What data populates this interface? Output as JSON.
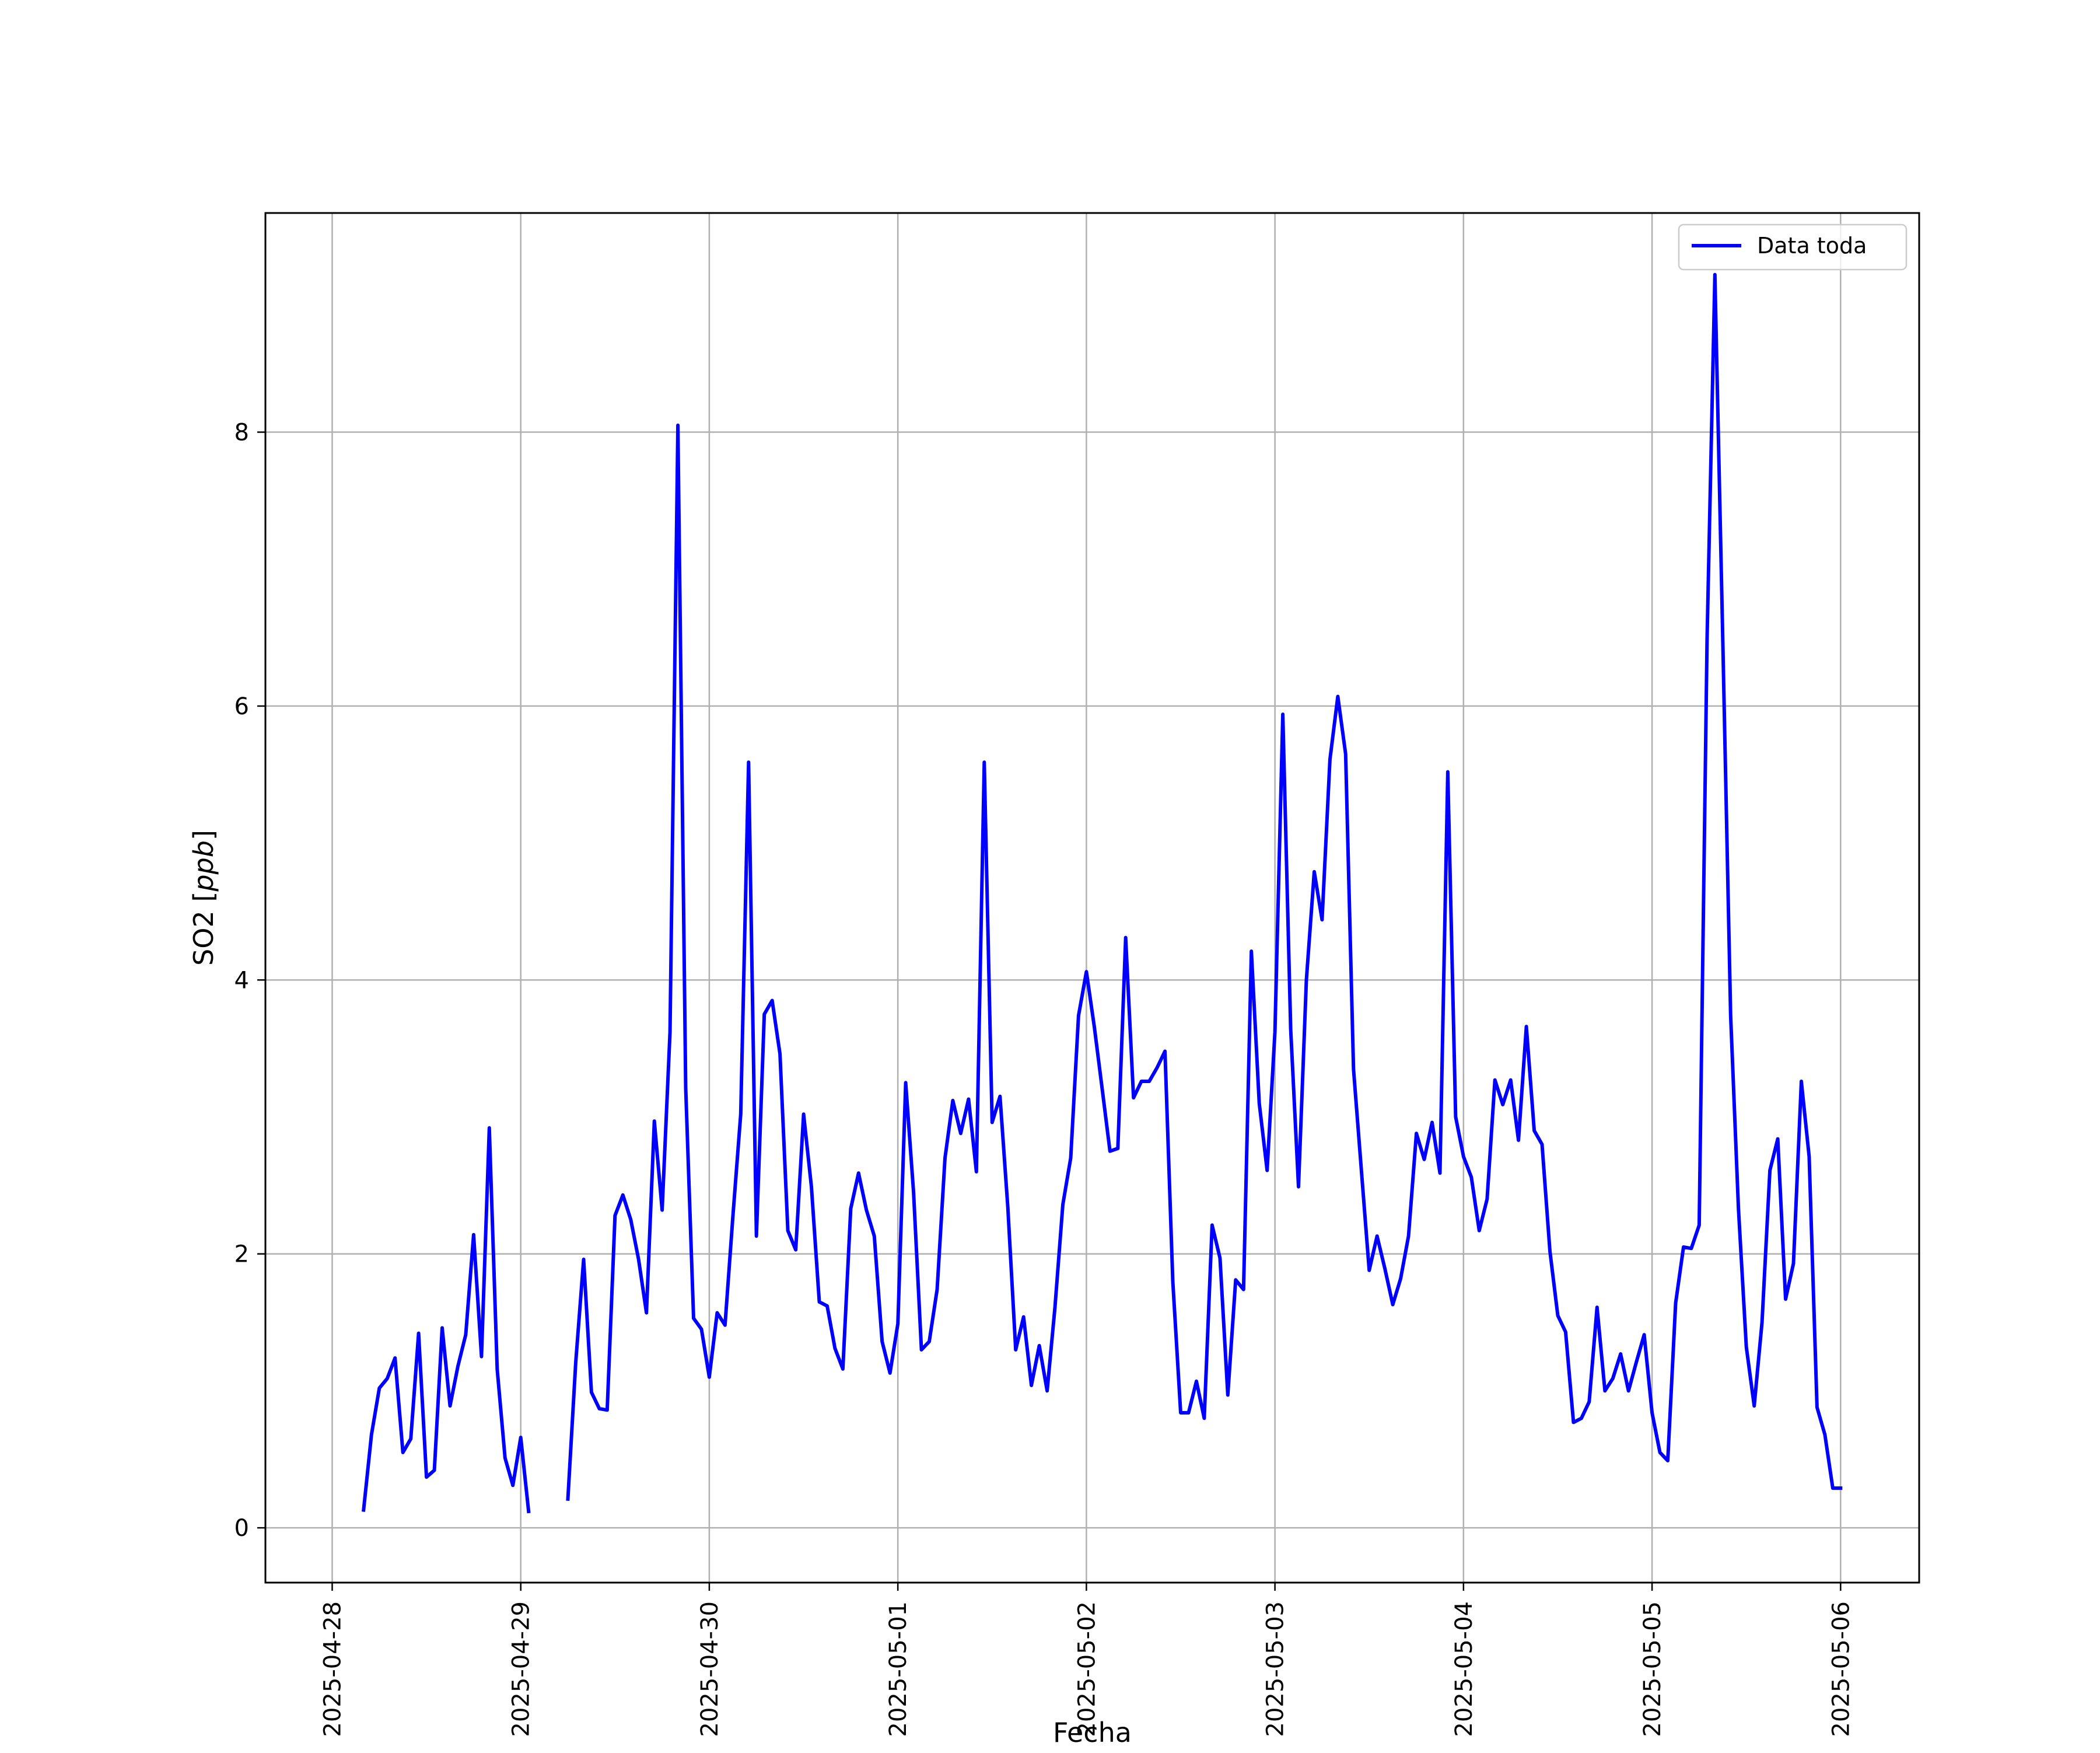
{
  "chart_data": {
    "type": "line",
    "title": "",
    "xlabel": "Fecha",
    "ylabel": "SO2 [ppb]",
    "ylabel_parts": {
      "main": "SO2 [",
      "italic": "ppb",
      "close": "]"
    },
    "ylim": [
      -0.4,
      9.6
    ],
    "y_ticks": [
      0,
      2,
      4,
      6,
      8
    ],
    "y_tick_labels": [
      "0",
      "2",
      "4",
      "6",
      "8"
    ],
    "xlim": [
      "2025-04-27T15:30",
      "2025-05-06T10:00"
    ],
    "x_ticks": [
      "2025-04-28",
      "2025-04-29",
      "2025-04-30",
      "2025-05-01",
      "2025-05-02",
      "2025-05-03",
      "2025-05-04",
      "2025-05-05",
      "2025-05-06"
    ],
    "x_tick_labels": [
      "2025-04-28",
      "2025-04-29",
      "2025-04-30",
      "2025-05-01",
      "2025-05-02",
      "2025-05-03",
      "2025-05-04",
      "2025-05-05",
      "2025-05-06"
    ],
    "grid": true,
    "legend_position": "upper right",
    "series": [
      {
        "name": "Data toda",
        "color": "#0000ff",
        "x": [
          "2025-04-28T04:00",
          "2025-04-28T05:00",
          "2025-04-28T06:00",
          "2025-04-28T07:00",
          "2025-04-28T08:00",
          "2025-04-28T09:00",
          "2025-04-28T10:00",
          "2025-04-28T11:00",
          "2025-04-28T12:00",
          "2025-04-28T13:00",
          "2025-04-28T14:00",
          "2025-04-28T15:00",
          "2025-04-28T16:00",
          "2025-04-28T17:00",
          "2025-04-28T18:00",
          "2025-04-28T19:00",
          "2025-04-28T20:00",
          "2025-04-28T21:00",
          "2025-04-28T22:00",
          "2025-04-28T23:00",
          "2025-04-29T00:00",
          "2025-04-29T01:00",
          "2025-04-29T02:00",
          "2025-04-29T06:00",
          "2025-04-29T07:00",
          "2025-04-29T08:00",
          "2025-04-29T09:00",
          "2025-04-29T10:00",
          "2025-04-29T11:00",
          "2025-04-29T12:00",
          "2025-04-29T13:00",
          "2025-04-29T14:00",
          "2025-04-29T15:00",
          "2025-04-29T16:00",
          "2025-04-29T17:00",
          "2025-04-29T18:00",
          "2025-04-29T19:00",
          "2025-04-29T20:00",
          "2025-04-29T21:00",
          "2025-04-29T22:00",
          "2025-04-29T23:00",
          "2025-04-30T00:00",
          "2025-04-30T01:00",
          "2025-04-30T02:00",
          "2025-04-30T03:00",
          "2025-04-30T04:00",
          "2025-04-30T05:00",
          "2025-04-30T06:00",
          "2025-04-30T07:00",
          "2025-04-30T08:00",
          "2025-04-30T09:00",
          "2025-04-30T10:00",
          "2025-04-30T11:00",
          "2025-04-30T12:00",
          "2025-04-30T13:00",
          "2025-04-30T14:00",
          "2025-04-30T15:00",
          "2025-04-30T16:00",
          "2025-04-30T17:00",
          "2025-04-30T18:00",
          "2025-04-30T19:00",
          "2025-04-30T20:00",
          "2025-04-30T21:00",
          "2025-04-30T22:00",
          "2025-04-30T23:00",
          "2025-05-01T00:00",
          "2025-05-01T01:00",
          "2025-05-01T02:00",
          "2025-05-01T03:00",
          "2025-05-01T04:00",
          "2025-05-01T05:00",
          "2025-05-01T06:00",
          "2025-05-01T07:00",
          "2025-05-01T08:00",
          "2025-05-01T09:00",
          "2025-05-01T10:00",
          "2025-05-01T11:00",
          "2025-05-01T12:00",
          "2025-05-01T13:00",
          "2025-05-01T14:00",
          "2025-05-01T15:00",
          "2025-05-01T16:00",
          "2025-05-01T17:00",
          "2025-05-01T18:00",
          "2025-05-01T19:00",
          "2025-05-01T20:00",
          "2025-05-01T21:00",
          "2025-05-01T22:00",
          "2025-05-01T23:00",
          "2025-05-02T00:00",
          "2025-05-02T01:00",
          "2025-05-02T02:00",
          "2025-05-02T03:00",
          "2025-05-02T04:00",
          "2025-05-02T05:00",
          "2025-05-02T06:00",
          "2025-05-02T07:00",
          "2025-05-02T08:00",
          "2025-05-02T09:00",
          "2025-05-02T10:00",
          "2025-05-02T11:00",
          "2025-05-02T12:00",
          "2025-05-02T13:00",
          "2025-05-02T14:00",
          "2025-05-02T15:00",
          "2025-05-02T16:00",
          "2025-05-02T17:00",
          "2025-05-02T18:00",
          "2025-05-02T19:00",
          "2025-05-02T20:00",
          "2025-05-02T21:00",
          "2025-05-02T22:00",
          "2025-05-02T23:00",
          "2025-05-03T00:00",
          "2025-05-03T01:00",
          "2025-05-03T02:00",
          "2025-05-03T03:00",
          "2025-05-03T04:00",
          "2025-05-03T05:00",
          "2025-05-03T06:00",
          "2025-05-03T07:00",
          "2025-05-03T08:00",
          "2025-05-03T09:00",
          "2025-05-03T10:00",
          "2025-05-03T11:00",
          "2025-05-03T12:00",
          "2025-05-03T13:00",
          "2025-05-03T14:00",
          "2025-05-03T15:00",
          "2025-05-03T16:00",
          "2025-05-03T17:00",
          "2025-05-03T18:00",
          "2025-05-03T19:00",
          "2025-05-03T20:00",
          "2025-05-03T21:00",
          "2025-05-03T22:00",
          "2025-05-03T23:00",
          "2025-05-04T00:00",
          "2025-05-04T01:00",
          "2025-05-04T02:00",
          "2025-05-04T03:00",
          "2025-05-04T04:00",
          "2025-05-04T05:00",
          "2025-05-04T06:00",
          "2025-05-04T07:00",
          "2025-05-04T08:00",
          "2025-05-04T09:00",
          "2025-05-04T10:00",
          "2025-05-04T11:00",
          "2025-05-04T12:00",
          "2025-05-04T13:00",
          "2025-05-04T14:00",
          "2025-05-04T15:00",
          "2025-05-04T16:00",
          "2025-05-04T17:00",
          "2025-05-04T18:00",
          "2025-05-04T19:00",
          "2025-05-04T20:00",
          "2025-05-04T21:00",
          "2025-05-04T22:00",
          "2025-05-04T23:00",
          "2025-05-05T00:00",
          "2025-05-05T01:00",
          "2025-05-05T02:00",
          "2025-05-05T03:00",
          "2025-05-05T04:00",
          "2025-05-05T05:00",
          "2025-05-05T06:00",
          "2025-05-05T07:00",
          "2025-05-05T08:00",
          "2025-05-05T09:00",
          "2025-05-05T10:00",
          "2025-05-05T11:00",
          "2025-05-05T12:00",
          "2025-05-05T13:00",
          "2025-05-05T14:00",
          "2025-05-05T15:00",
          "2025-05-05T16:00",
          "2025-05-05T17:00",
          "2025-05-05T18:00",
          "2025-05-05T19:00",
          "2025-05-05T20:00",
          "2025-05-05T21:00",
          "2025-05-05T22:00",
          "2025-05-05T23:00",
          "2025-05-06T00:00"
        ],
        "y": [
          0.13,
          0.68,
          1.02,
          1.09,
          1.24,
          0.55,
          0.65,
          1.42,
          0.37,
          0.42,
          1.46,
          0.89,
          1.18,
          1.41,
          2.14,
          1.25,
          2.92,
          1.16,
          0.51,
          0.31,
          0.66,
          0.12,
          null,
          0.21,
          1.21,
          1.96,
          0.99,
          0.87,
          0.86,
          2.28,
          2.43,
          2.25,
          1.96,
          1.57,
          2.97,
          2.32,
          3.62,
          8.05,
          3.21,
          1.53,
          1.45,
          1.1,
          1.57,
          1.48,
          2.27,
          3.02,
          5.59,
          2.13,
          3.75,
          3.85,
          3.46,
          2.17,
          2.03,
          3.02,
          2.49,
          1.65,
          1.62,
          1.31,
          1.16,
          2.33,
          2.59,
          2.32,
          2.13,
          1.36,
          1.13,
          1.49,
          3.25,
          2.45,
          1.3,
          1.36,
          1.74,
          2.7,
          3.12,
          2.88,
          3.13,
          2.6,
          5.59,
          2.96,
          3.15,
          2.34,
          1.3,
          1.54,
          1.04,
          1.33,
          1.0,
          1.61,
          2.36,
          2.7,
          3.74,
          4.06,
          3.66,
          3.21,
          2.75,
          2.77,
          4.31,
          3.14,
          3.26,
          3.26,
          3.36,
          3.48,
          1.8,
          0.84,
          0.84,
          1.07,
          0.8,
          2.21,
          1.97,
          0.97,
          1.81,
          1.74,
          4.21,
          3.1,
          2.61,
          3.62,
          5.94,
          3.64,
          2.49,
          4.0,
          4.79,
          4.44,
          5.61,
          6.07,
          5.65,
          3.35,
          2.61,
          1.88,
          2.13,
          1.89,
          1.63,
          1.82,
          2.13,
          2.88,
          2.69,
          2.96,
          2.59,
          5.52,
          3.0,
          2.71,
          2.56,
          2.17,
          2.4,
          3.27,
          3.09,
          3.27,
          2.83,
          3.66,
          2.9,
          2.8,
          2.02,
          1.55,
          1.43,
          0.77,
          0.8,
          0.92,
          1.61,
          1.0,
          1.09,
          1.27,
          1.0,
          1.21,
          1.41,
          0.84,
          0.55,
          0.49,
          1.64,
          2.05,
          2.04,
          2.21,
          6.49,
          9.15,
          6.49,
          3.74,
          2.33,
          1.32,
          0.89,
          1.5,
          2.61,
          2.84,
          1.67,
          1.93,
          3.26,
          2.71,
          0.88,
          0.68,
          0.29,
          0.29
        ]
      }
    ]
  }
}
